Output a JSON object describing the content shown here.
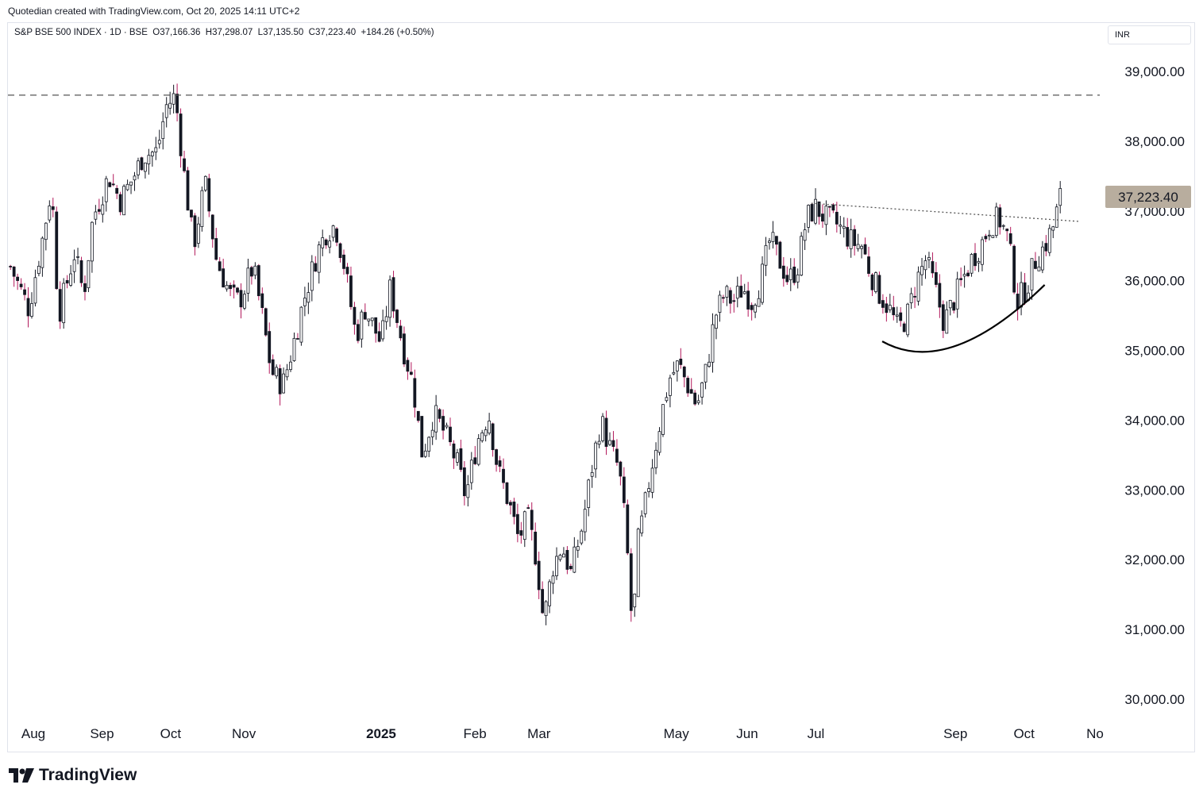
{
  "header": {
    "credit": "Quotedian created with TradingView.com, Oct 20, 2025 14:11 UTC+2"
  },
  "legend": {
    "symbol": "S&P BSE 500 INDEX · 1D · BSE",
    "open_label": "O",
    "open": "37,166.36",
    "high_label": "H",
    "high": "37,298.07",
    "low_label": "L",
    "low": "37,135.50",
    "close_label": "C",
    "close": "37,223.40",
    "change": "+184.26 (+0.50%)"
  },
  "currency": "INR",
  "last_price_label": "37,223.40",
  "footer": {
    "brand": "TradingView"
  },
  "colors": {
    "up": "#131722",
    "down_wick": "#b2185b",
    "last_label_bg": "#b8ad9e",
    "grid_line": "#555555"
  },
  "chart_data": {
    "type": "candlestick",
    "ylim": [
      29600,
      39400
    ],
    "y_ticks": [
      "39,000.00",
      "38,000.00",
      "37,000.00",
      "36,000.00",
      "35,000.00",
      "34,000.00",
      "33,000.00",
      "32,000.00",
      "31,000.00",
      "30,000.00"
    ],
    "y_tick_values": [
      39000,
      38000,
      37000,
      36000,
      35000,
      34000,
      33000,
      32000,
      31000,
      30000
    ],
    "x_labels": [
      {
        "label": "Aug",
        "day": 0
      },
      {
        "label": "Sep",
        "day": 30
      },
      {
        "label": "Oct",
        "day": 60
      },
      {
        "label": "Nov",
        "day": 92
      },
      {
        "label": "2025",
        "day": 152,
        "bold": true
      },
      {
        "label": "Feb",
        "day": 193
      },
      {
        "label": "Mar",
        "day": 221
      },
      {
        "label": "May",
        "day": 281
      },
      {
        "label": "Jun",
        "day": 312
      },
      {
        "label": "Jul",
        "day": 342
      },
      {
        "label": "Sep",
        "day": 403
      },
      {
        "label": "Oct",
        "day": 433
      },
      {
        "label": "No",
        "day": 464
      }
    ],
    "x_range_days": [
      -10,
      470
    ],
    "resistance_level": 38660,
    "trendline": {
      "from": {
        "day": 340,
        "value": 37110
      },
      "to": {
        "day": 457,
        "value": 36850
      }
    },
    "rounding_bottom": {
      "start": {
        "day": 371,
        "value": 35130
      },
      "control": {
        "day": 400,
        "value": 34600
      },
      "end": {
        "day": 442,
        "value": 35940
      }
    },
    "anchors": [
      {
        "day": -10,
        "close": 36200
      },
      {
        "day": -2,
        "close": 35600
      },
      {
        "day": 4,
        "close": 36600
      },
      {
        "day": 8,
        "close": 37350
      },
      {
        "day": 11,
        "close": 35500
      },
      {
        "day": 18,
        "close": 36400
      },
      {
        "day": 22,
        "close": 35800
      },
      {
        "day": 26,
        "close": 36900
      },
      {
        "day": 33,
        "close": 37500
      },
      {
        "day": 38,
        "close": 37150
      },
      {
        "day": 44,
        "close": 37500
      },
      {
        "day": 48,
        "close": 37800
      },
      {
        "day": 54,
        "close": 37850
      },
      {
        "day": 58,
        "close": 38500
      },
      {
        "day": 62,
        "close": 38650
      },
      {
        "day": 66,
        "close": 37500
      },
      {
        "day": 70,
        "close": 36500
      },
      {
        "day": 75,
        "close": 37400
      },
      {
        "day": 80,
        "close": 36300
      },
      {
        "day": 86,
        "close": 35800
      },
      {
        "day": 90,
        "close": 35700
      },
      {
        "day": 96,
        "close": 36200
      },
      {
        "day": 100,
        "close": 35500
      },
      {
        "day": 104,
        "close": 34700
      },
      {
        "day": 109,
        "close": 34500
      },
      {
        "day": 113,
        "close": 35000
      },
      {
        "day": 118,
        "close": 35700
      },
      {
        "day": 124,
        "close": 36400
      },
      {
        "day": 128,
        "close": 36700
      },
      {
        "day": 132,
        "close": 36800
      },
      {
        "day": 136,
        "close": 36200
      },
      {
        "day": 141,
        "close": 35200
      },
      {
        "day": 145,
        "close": 35600
      },
      {
        "day": 152,
        "close": 35100
      },
      {
        "day": 156,
        "close": 35900
      },
      {
        "day": 162,
        "close": 35000
      },
      {
        "day": 166,
        "close": 34500
      },
      {
        "day": 170,
        "close": 33500
      },
      {
        "day": 175,
        "close": 34100
      },
      {
        "day": 180,
        "close": 33800
      },
      {
        "day": 185,
        "close": 33400
      },
      {
        "day": 189,
        "close": 32900
      },
      {
        "day": 194,
        "close": 33700
      },
      {
        "day": 199,
        "close": 34100
      },
      {
        "day": 203,
        "close": 33300
      },
      {
        "day": 208,
        "close": 32800
      },
      {
        "day": 212,
        "close": 32300
      },
      {
        "day": 216,
        "close": 32600
      },
      {
        "day": 220,
        "close": 32000
      },
      {
        "day": 223,
        "close": 31100
      },
      {
        "day": 227,
        "close": 31900
      },
      {
        "day": 231,
        "close": 32200
      },
      {
        "day": 235,
        "close": 31800
      },
      {
        "day": 240,
        "close": 32500
      },
      {
        "day": 244,
        "close": 33300
      },
      {
        "day": 248,
        "close": 34000
      },
      {
        "day": 252,
        "close": 33600
      },
      {
        "day": 256,
        "close": 33300
      },
      {
        "day": 259,
        "close": 32400
      },
      {
        "day": 262,
        "close": 30900
      },
      {
        "day": 264,
        "close": 32200
      },
      {
        "day": 267,
        "close": 32700
      },
      {
        "day": 270,
        "close": 33300
      },
      {
        "day": 274,
        "close": 34000
      },
      {
        "day": 278,
        "close": 34600
      },
      {
        "day": 282,
        "close": 34800
      },
      {
        "day": 286,
        "close": 34500
      },
      {
        "day": 290,
        "close": 34200
      },
      {
        "day": 294,
        "close": 34700
      },
      {
        "day": 298,
        "close": 35500
      },
      {
        "day": 302,
        "close": 35800
      },
      {
        "day": 306,
        "close": 35700
      },
      {
        "day": 310,
        "close": 35900
      },
      {
        "day": 314,
        "close": 35700
      },
      {
        "day": 318,
        "close": 36000
      },
      {
        "day": 322,
        "close": 36600
      },
      {
        "day": 326,
        "close": 36300
      },
      {
        "day": 330,
        "close": 36000
      },
      {
        "day": 334,
        "close": 36200
      },
      {
        "day": 338,
        "close": 36900
      },
      {
        "day": 342,
        "close": 37050
      },
      {
        "day": 346,
        "close": 36900
      },
      {
        "day": 350,
        "close": 36850
      },
      {
        "day": 354,
        "close": 36700
      },
      {
        "day": 358,
        "close": 36550
      },
      {
        "day": 362,
        "close": 36500
      },
      {
        "day": 366,
        "close": 36100
      },
      {
        "day": 370,
        "close": 35800
      },
      {
        "day": 374,
        "close": 35600
      },
      {
        "day": 378,
        "close": 35300
      },
      {
        "day": 382,
        "close": 35500
      },
      {
        "day": 386,
        "close": 36000
      },
      {
        "day": 390,
        "close": 36300
      },
      {
        "day": 394,
        "close": 35900
      },
      {
        "day": 398,
        "close": 35400
      },
      {
        "day": 402,
        "close": 35700
      },
      {
        "day": 406,
        "close": 36000
      },
      {
        "day": 410,
        "close": 36300
      },
      {
        "day": 414,
        "close": 36500
      },
      {
        "day": 418,
        "close": 36800
      },
      {
        "day": 422,
        "close": 36900
      },
      {
        "day": 426,
        "close": 36600
      },
      {
        "day": 430,
        "close": 35700
      },
      {
        "day": 434,
        "close": 35900
      },
      {
        "day": 438,
        "close": 36300
      },
      {
        "day": 442,
        "close": 36500
      },
      {
        "day": 446,
        "close": 36800
      },
      {
        "day": 449,
        "close": 37223
      }
    ]
  }
}
